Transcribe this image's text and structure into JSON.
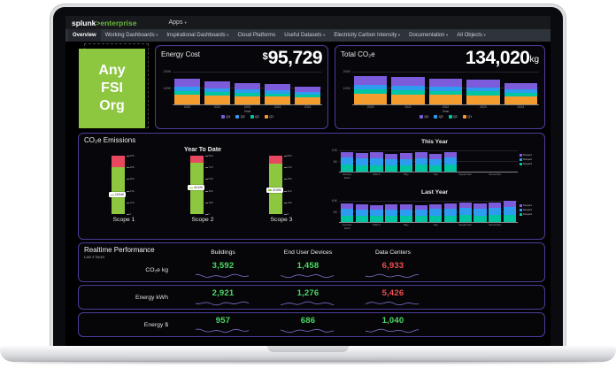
{
  "topbar": {
    "brand_bold": "splunk",
    "brand_green": ">enterprise",
    "apps_label": "Apps"
  },
  "nav": {
    "items": [
      {
        "label": "Overview",
        "caret": false,
        "active": true
      },
      {
        "label": "Working Dashboards",
        "caret": true,
        "active": false
      },
      {
        "label": "Inspirational Dashboards",
        "caret": true,
        "active": false
      },
      {
        "label": "Cloud Platforms",
        "caret": false,
        "active": false
      },
      {
        "label": "Useful Datasets",
        "caret": true,
        "active": false
      },
      {
        "label": "Electricity Carbon Intensity",
        "caret": true,
        "active": false
      },
      {
        "label": "Documentation",
        "caret": true,
        "active": false
      },
      {
        "label": "All Objects",
        "caret": true,
        "active": false
      }
    ]
  },
  "org_box": {
    "lines": [
      "Any",
      "FSI",
      "Org"
    ],
    "bg": "#8dc63f"
  },
  "colors": {
    "panel_border": "#4e3c9a",
    "good": "#4cd964",
    "bad": "#ef4e4e",
    "sparkline": "#7d74cf",
    "gauge_green": "#8dc63f",
    "gauge_red": "#e8485f",
    "q4_purple": "#7c5cdb",
    "q3_blue": "#2d9bf0",
    "q2_teal": "#00c5a2",
    "q1_orange": "#f59c2f"
  },
  "panels": {
    "energy_cost": {
      "title": "Energy Cost",
      "currency": "$",
      "value": "95,729"
    },
    "total_co2e": {
      "title": "Total CO₂e",
      "value": "134,020",
      "unit": "kg"
    },
    "emissions": {
      "title": "CO₂e Emissions",
      "ytd_title": "Year To Date"
    },
    "realtime": {
      "title": "Realtime Performance",
      "subtitle": "Last 4 hours",
      "columns": [
        "Buildings",
        "End User Devices",
        "Data Centers"
      ],
      "rows": [
        {
          "label": "CO₂e kg",
          "cells": [
            {
              "value": "3,592",
              "status": "good"
            },
            {
              "value": "1,458",
              "status": "good"
            },
            {
              "value": "6,933",
              "status": "bad"
            }
          ]
        },
        {
          "label": "Energy kWh",
          "cells": [
            {
              "value": "2,921",
              "status": "good"
            },
            {
              "value": "1,276",
              "status": "good"
            },
            {
              "value": "5,426",
              "status": "bad"
            }
          ]
        },
        {
          "label": "Energy $",
          "cells": [
            {
              "value": "957",
              "status": "good"
            },
            {
              "value": "686",
              "status": "good"
            },
            {
              "value": "1,040",
              "status": "good"
            }
          ]
        }
      ]
    }
  },
  "chart_data": [
    {
      "id": "energy_cost",
      "type": "bar",
      "stacked": true,
      "title": "Energy Cost",
      "xlabel": "Year",
      "categories": [
        "2020",
        "2021",
        "2022",
        "2023",
        "2024"
      ],
      "series": [
        {
          "name": "Q1",
          "color": "#f59c2f",
          "values": [
            58000,
            53000,
            49000,
            46000,
            41000
          ]
        },
        {
          "name": "Q2",
          "color": "#00c5a2",
          "values": [
            24000,
            22000,
            20000,
            19000,
            17000
          ]
        },
        {
          "name": "Q3",
          "color": "#2d9bf0",
          "values": [
            26000,
            24000,
            22000,
            20000,
            18000
          ]
        },
        {
          "name": "Q4",
          "color": "#7c5cdb",
          "values": [
            48000,
            43000,
            40000,
            37000,
            33000
          ]
        }
      ],
      "legend_order": [
        "Q4",
        "Q3",
        "Q2",
        "Q1"
      ],
      "ylim": [
        0,
        220000
      ],
      "yticks": [
        {
          "value": 200000,
          "label": "200K"
        },
        {
          "value": 100000,
          "label": "100K"
        }
      ]
    },
    {
      "id": "total_co2e",
      "type": "bar",
      "stacked": true,
      "title": "Total CO₂e",
      "xlabel": "Year",
      "categories": [
        "2020",
        "2021",
        "2022",
        "2023",
        "2024"
      ],
      "series": [
        {
          "name": "Q1",
          "color": "#f59c2f",
          "values": [
            64000,
            61000,
            58000,
            55000,
            49000
          ]
        },
        {
          "name": "Q2",
          "color": "#00c5a2",
          "values": [
            27000,
            26000,
            24000,
            23000,
            20000
          ]
        },
        {
          "name": "Q3",
          "color": "#2d9bf0",
          "values": [
            28000,
            27000,
            26000,
            24000,
            21000
          ]
        },
        {
          "name": "Q4",
          "color": "#7c5cdb",
          "values": [
            55000,
            52000,
            50000,
            46000,
            41000
          ]
        }
      ],
      "legend_order": [
        "Q4",
        "Q3",
        "Q2",
        "Q1"
      ],
      "ylim": [
        0,
        220000
      ],
      "yticks": [
        {
          "value": 200000,
          "label": "200K"
        },
        {
          "value": 100000,
          "label": "100K"
        }
      ]
    },
    {
      "id": "this_year",
      "type": "bar",
      "stacked": true,
      "title": "This Year",
      "categories": [
        "January 2024",
        "February",
        "March",
        "April",
        "May",
        "June",
        "July",
        "August",
        "September",
        "October",
        "November",
        "December"
      ],
      "xticks": [
        "January\n2024",
        "",
        "March",
        "",
        "May",
        "",
        "July",
        "",
        "September",
        "",
        "November",
        ""
      ],
      "series": [
        {
          "name": "Scope3",
          "color": "#00c5a2",
          "values": [
            3200,
            3000,
            3100,
            2900,
            2950,
            3150,
            2900,
            3200,
            null,
            null,
            null,
            null
          ]
        },
        {
          "name": "Scope2",
          "color": "#2d9bf0",
          "values": [
            3300,
            3050,
            3150,
            2950,
            3000,
            3200,
            2950,
            3250,
            null,
            null,
            null,
            null
          ]
        },
        {
          "name": "Scope1",
          "color": "#7c5cdb",
          "values": [
            2800,
            2600,
            2700,
            2500,
            2550,
            2750,
            2500,
            2850,
            null,
            null,
            null,
            null
          ]
        }
      ],
      "legend_order": [
        "Scope1",
        "Scope2",
        "Scope3"
      ],
      "ylim": [
        0,
        12000
      ],
      "yticks": [
        {
          "value": 10000,
          "label": "10K"
        },
        {
          "value": 5000,
          "label": "5K"
        }
      ]
    },
    {
      "id": "last_year",
      "type": "bar",
      "stacked": true,
      "title": "Last Year",
      "categories": [
        "January 2023",
        "February",
        "March",
        "April",
        "May",
        "June",
        "July",
        "August",
        "September",
        "October",
        "November",
        "December"
      ],
      "xticks": [
        "January\n2023",
        "",
        "March",
        "",
        "May",
        "",
        "July",
        "",
        "September",
        "",
        "November",
        ""
      ],
      "series": [
        {
          "name": "Scope3",
          "color": "#00c5a2",
          "values": [
            3100,
            2850,
            2800,
            2850,
            2900,
            2750,
            2950,
            2950,
            3150,
            3050,
            3200,
            3400
          ]
        },
        {
          "name": "Scope2",
          "color": "#2d9bf0",
          "values": [
            3300,
            3000,
            2950,
            3050,
            3050,
            2950,
            3100,
            3150,
            3300,
            3200,
            3400,
            3600
          ]
        },
        {
          "name": "Scope1",
          "color": "#7c5cdb",
          "values": [
            2500,
            2250,
            2250,
            2300,
            2350,
            2200,
            2350,
            2400,
            2550,
            2450,
            2600,
            2800
          ]
        }
      ],
      "legend_order": [
        "Scope1",
        "Scope2",
        "Scope3"
      ],
      "ylim": [
        0,
        12000
      ],
      "yticks": [
        {
          "value": 10000,
          "label": "10K"
        },
        {
          "value": 5000,
          "label": "5K"
        }
      ]
    },
    {
      "id": "scope_gauges",
      "type": "gauge",
      "group_title": "Year To Date",
      "gauges": [
        {
          "label": "Scope 1",
          "value_label": "19.54K",
          "pct": 33,
          "red_pct": 20,
          "ticks": [
            "60K",
            "48K",
            "36K",
            "24K",
            "12K",
            "0"
          ]
        },
        {
          "label": "Scope 2",
          "value_label": "40.42K",
          "pct": 45,
          "red_pct": 12,
          "ticks": [
            "90K",
            "72K",
            "54K",
            "36K",
            "18K",
            "0"
          ]
        },
        {
          "label": "Scope 3",
          "value_label": "32.65K",
          "pct": 41,
          "red_pct": 14,
          "ticks": [
            "80K",
            "64K",
            "48K",
            "32K",
            "16K",
            "0"
          ]
        }
      ]
    }
  ]
}
